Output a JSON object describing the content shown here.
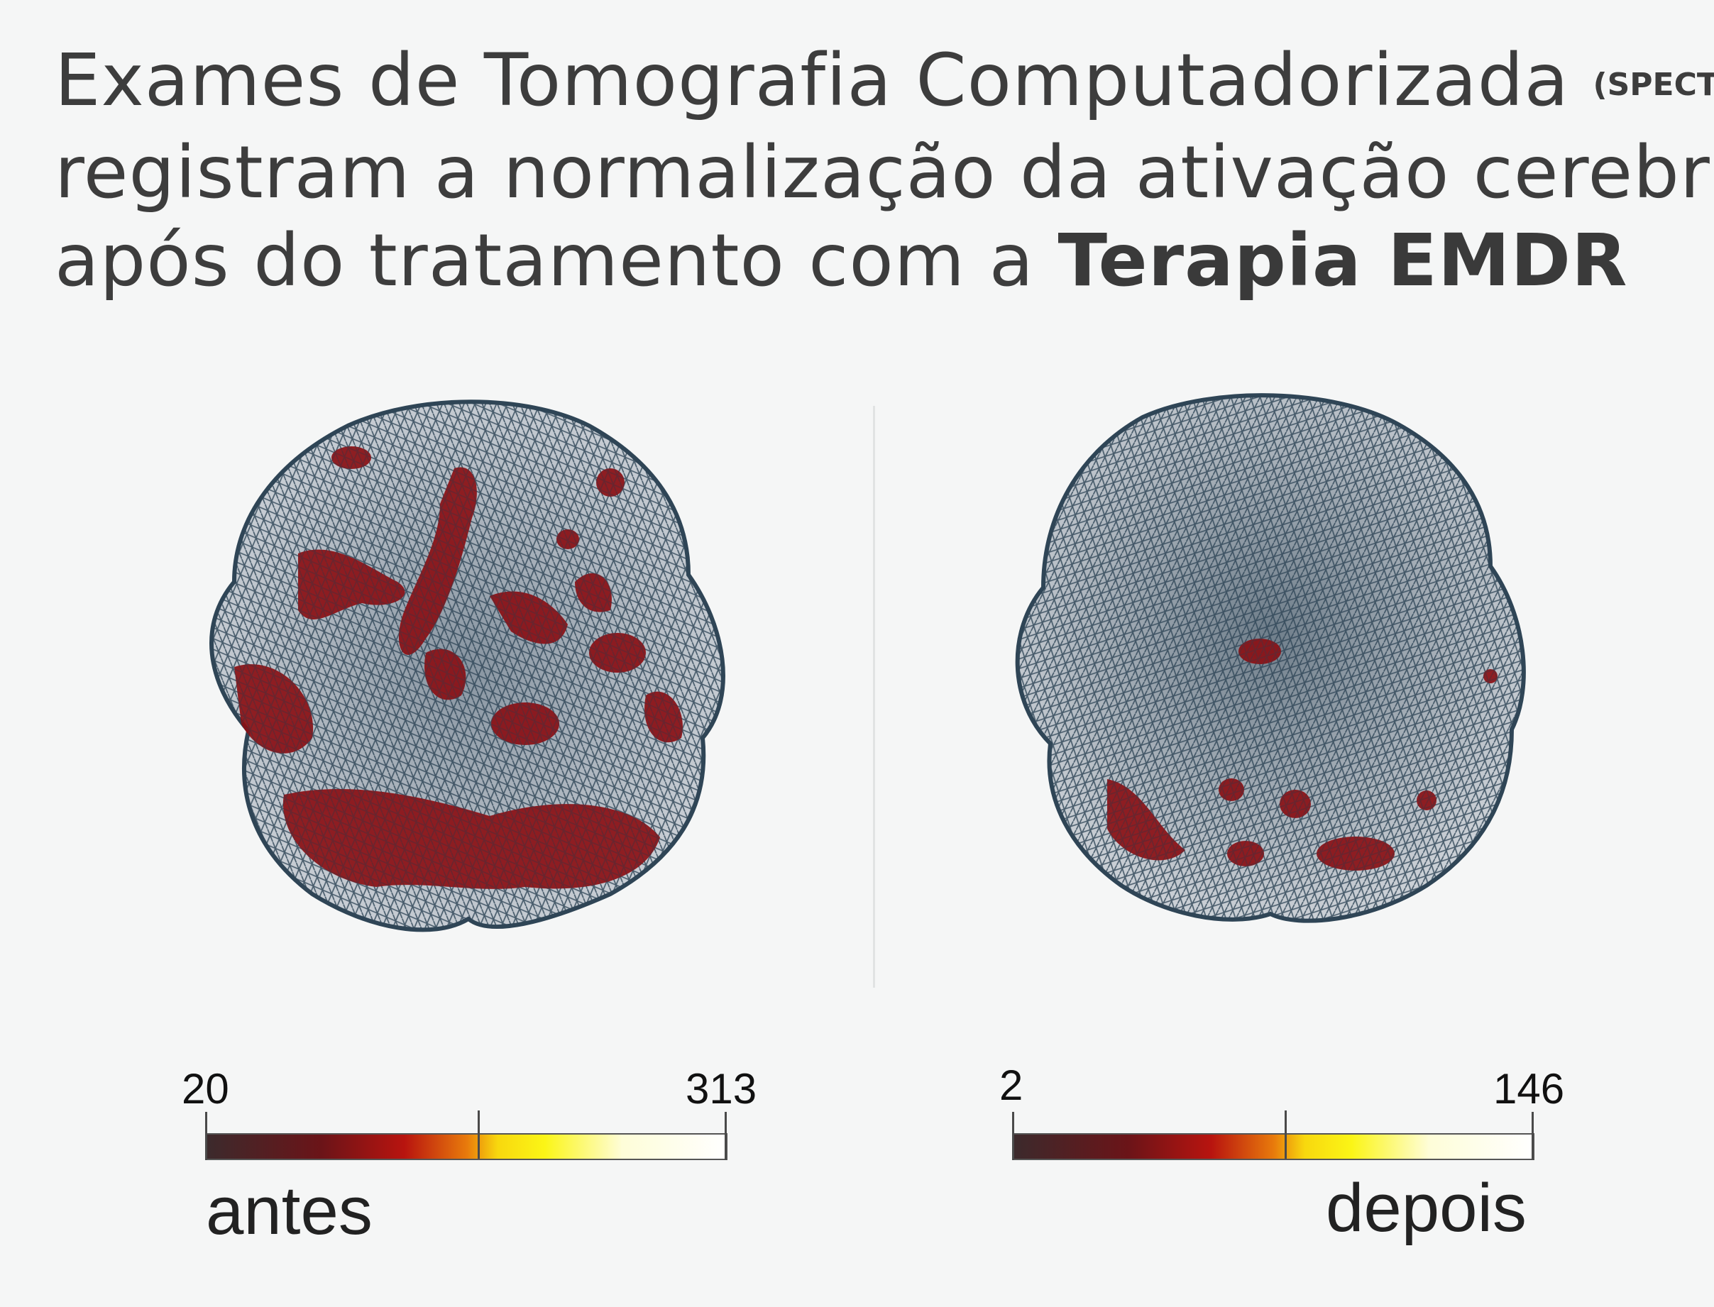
{
  "title": {
    "line1": "Exames de Tomografia Computadorizada",
    "line1_small": "(SPECT)",
    "line2": "registram a normalização da ativação cerebral",
    "line3_regular": "após do tratamento com a ",
    "line3_bold": "Terapia EMDR"
  },
  "before": {
    "scale_min": "20",
    "scale_max": "313",
    "label": "antes"
  },
  "after": {
    "scale_min": "2",
    "scale_max": "146",
    "label": "depois"
  },
  "colors": {
    "background": "#f5f6f6",
    "mesh": "#2f4556",
    "activation": "#8a0f14"
  }
}
